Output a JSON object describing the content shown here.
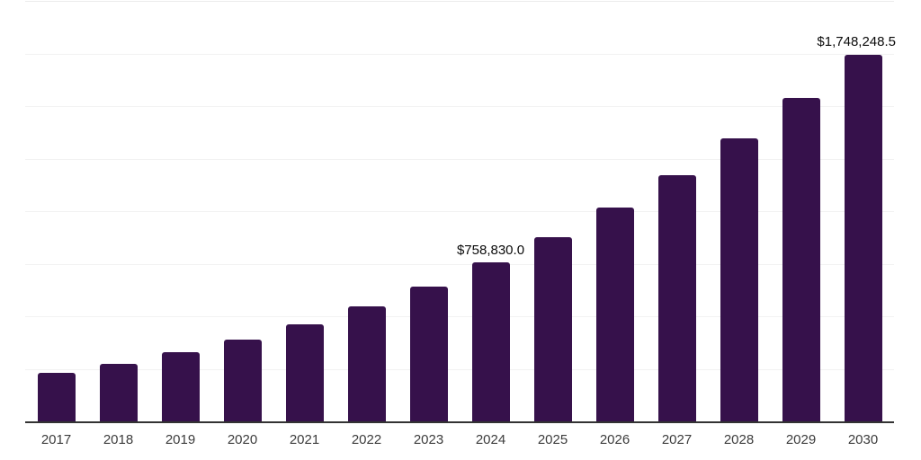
{
  "chart_data": {
    "type": "bar",
    "title": "",
    "xlabel": "",
    "ylabel": "",
    "categories": [
      "2017",
      "2018",
      "2019",
      "2020",
      "2021",
      "2022",
      "2023",
      "2024",
      "2025",
      "2026",
      "2027",
      "2028",
      "2029",
      "2030"
    ],
    "values": [
      234000,
      278000,
      332000,
      393000,
      466000,
      550000,
      646000,
      758830.0,
      881000,
      1022000,
      1174000,
      1349000,
      1543000,
      1748248.5
    ],
    "value_labels": {
      "2024": "$758,830.0",
      "2030": "$1,748,248.5"
    },
    "ylim": [
      0,
      2000000
    ],
    "gridline_interval": 250000,
    "grid": "horizontal",
    "y_tick_labels_shown": false,
    "legend_position": "none",
    "colors": {
      "bar": "#36114B",
      "axis_line": "#333333",
      "gridline": "#f2f2f2",
      "gridline_top": "#ececec",
      "value_label_text": "#0a0a0a",
      "tick_label_text": "#3c3c3c",
      "background": "#ffffff"
    }
  }
}
